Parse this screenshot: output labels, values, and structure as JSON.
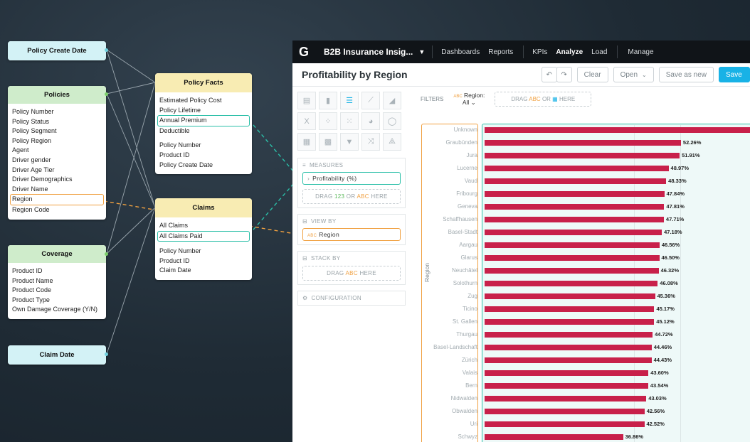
{
  "diagram": {
    "policy_create_date": {
      "title": "Policy Create Date"
    },
    "policies": {
      "title": "Policies",
      "fields": [
        "Policy Number",
        "Policy Status",
        "Policy Segment",
        "Policy Region",
        "Agent",
        "Driver gender",
        "Driver Age Tier",
        "Driver Demographics",
        "Driver Name",
        "Region",
        "Region Code"
      ]
    },
    "coverage": {
      "title": "Coverage",
      "fields": [
        "Product ID",
        "Product Name",
        "Product Code",
        "Product Type",
        "Own Damage Coverage (Y/N)"
      ]
    },
    "claim_date": {
      "title": "Claim Date"
    },
    "policy_facts": {
      "title": "Policy Facts",
      "facts": [
        "Estimated Policy Cost",
        "Policy Lifetime",
        "Annual Premium",
        "Deductible"
      ],
      "keys": [
        "Policy Number",
        "Product ID",
        "Policy Create Date"
      ]
    },
    "claims": {
      "title": "Claims",
      "facts": [
        "All Claims",
        "All Claims Paid"
      ],
      "keys": [
        "Policy Number",
        "Product ID",
        "Claim Date"
      ]
    }
  },
  "app": {
    "logo": "G",
    "name": "B2B Insurance Insig...",
    "nav": [
      "Dashboards",
      "Reports",
      "KPIs",
      "Analyze",
      "Load",
      "Manage"
    ],
    "active_nav": "Analyze",
    "report_title": "Profitability by Region",
    "buttons": {
      "clear": "Clear",
      "open": "Open",
      "save_as_new": "Save as new",
      "save": "Save"
    },
    "filters": {
      "label": "FILTERS",
      "region_label": "Region:",
      "region_value": "All",
      "abc": "ABC",
      "drag": "DRAG",
      "or": "OR",
      "here": "HERE"
    },
    "measures": {
      "label": "MEASURES",
      "item": "Profitability (%)",
      "drag": "DRAG",
      "num": "123",
      "or": "OR",
      "abc": "ABC",
      "here": "HERE"
    },
    "view_by": {
      "label": "VIEW BY",
      "item": "Region",
      "abc": "ABC"
    },
    "stack_by": {
      "label": "STACK BY",
      "drag": "DRAG",
      "abc": "ABC",
      "here": "HERE"
    },
    "configuration": {
      "label": "CONFIGURATION"
    }
  },
  "chart_data": {
    "type": "bar",
    "orientation": "horizontal",
    "ylabel": "Region",
    "categories": [
      "Unknown",
      "Graubünden",
      "Jura",
      "Lucerne",
      "Vaud",
      "Fribourg",
      "Geneva",
      "Schaffhausen",
      "Basel-Stadt",
      "Aargau",
      "Glarus",
      "Neuchâtel",
      "Solothurn",
      "Zug",
      "Ticino",
      "St. Gallen",
      "Thurgau",
      "Basel-Landschaft",
      "Zürich",
      "Valais",
      "Bern",
      "Nidwalden",
      "Obwalden",
      "Uri",
      "Schwyz"
    ],
    "values": [
      null,
      52.26,
      51.91,
      48.97,
      48.33,
      47.84,
      47.81,
      47.71,
      47.18,
      46.56,
      46.5,
      46.32,
      46.08,
      45.36,
      45.17,
      45.12,
      44.72,
      44.46,
      44.43,
      43.6,
      43.54,
      43.03,
      42.56,
      42.52,
      36.86
    ],
    "labels": [
      "",
      "52.26%",
      "51.91%",
      "48.97%",
      "48.33%",
      "47.84%",
      "47.81%",
      "47.71%",
      "47.18%",
      "46.56%",
      "46.50%",
      "46.32%",
      "46.08%",
      "45.36%",
      "45.17%",
      "45.12%",
      "44.72%",
      "44.46%",
      "44.43%",
      "43.60%",
      "43.54%",
      "43.03%",
      "42.56%",
      "42.52%",
      "36.86%"
    ],
    "colors": {
      "bar": "#c8204a"
    }
  }
}
